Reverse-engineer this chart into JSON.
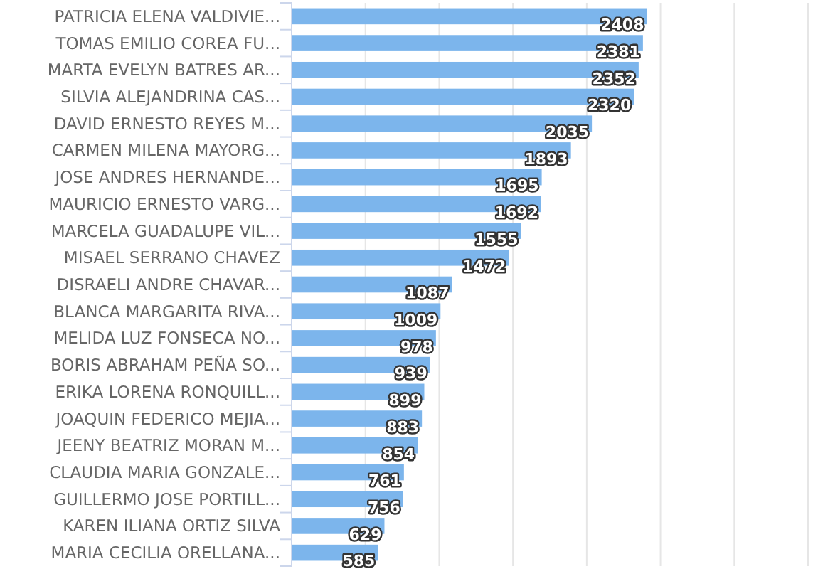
{
  "chart_data": {
    "type": "bar",
    "orientation": "horizontal",
    "categories": [
      "PATRICIA ELENA VALDIVIE...",
      "TOMAS EMILIO COREA FU...",
      "MARTA EVELYN BATRES AR...",
      "SILVIA ALEJANDRINA CAS...",
      "DAVID ERNESTO REYES M...",
      "CARMEN MILENA MAYORG...",
      "JOSE ANDRES HERNANDE...",
      "MAURICIO ERNESTO VARG...",
      "MARCELA GUADALUPE VIL...",
      "MISAEL SERRANO CHAVEZ",
      "DISRAELI ANDRE CHAVAR...",
      "BLANCA MARGARITA RIVA...",
      "MELIDA LUZ FONSECA NO...",
      "BORIS ABRAHAM PEÑA SO...",
      "ERIKA LORENA RONQUILL...",
      "JOAQUIN FEDERICO MEJIA...",
      "JEENY BEATRIZ MORAN M...",
      "CLAUDIA MARIA GONZALE...",
      "GUILLERMO JOSE PORTILL...",
      "KAREN ILIANA ORTIZ SILVA",
      "MARIA CECILIA ORELLANA..."
    ],
    "values": [
      2408,
      2381,
      2352,
      2320,
      2035,
      1893,
      1695,
      1692,
      1555,
      1472,
      1087,
      1009,
      978,
      939,
      899,
      883,
      854,
      761,
      756,
      629,
      585
    ],
    "color": "#7cb5ec",
    "data_labels": true,
    "grid": "x",
    "tick_labels": "y",
    "xlim": [
      0,
      3500
    ],
    "xticks": [
      {
        "value": 0,
        "label": null
      },
      {
        "value": 500,
        "label": null
      },
      {
        "value": 1000,
        "label": null
      },
      {
        "value": 1500,
        "label": null
      },
      {
        "value": 2000,
        "label": null
      },
      {
        "value": 2500,
        "label": null
      },
      {
        "value": 3000,
        "label": null
      },
      {
        "value": 3500,
        "label": null
      }
    ]
  }
}
